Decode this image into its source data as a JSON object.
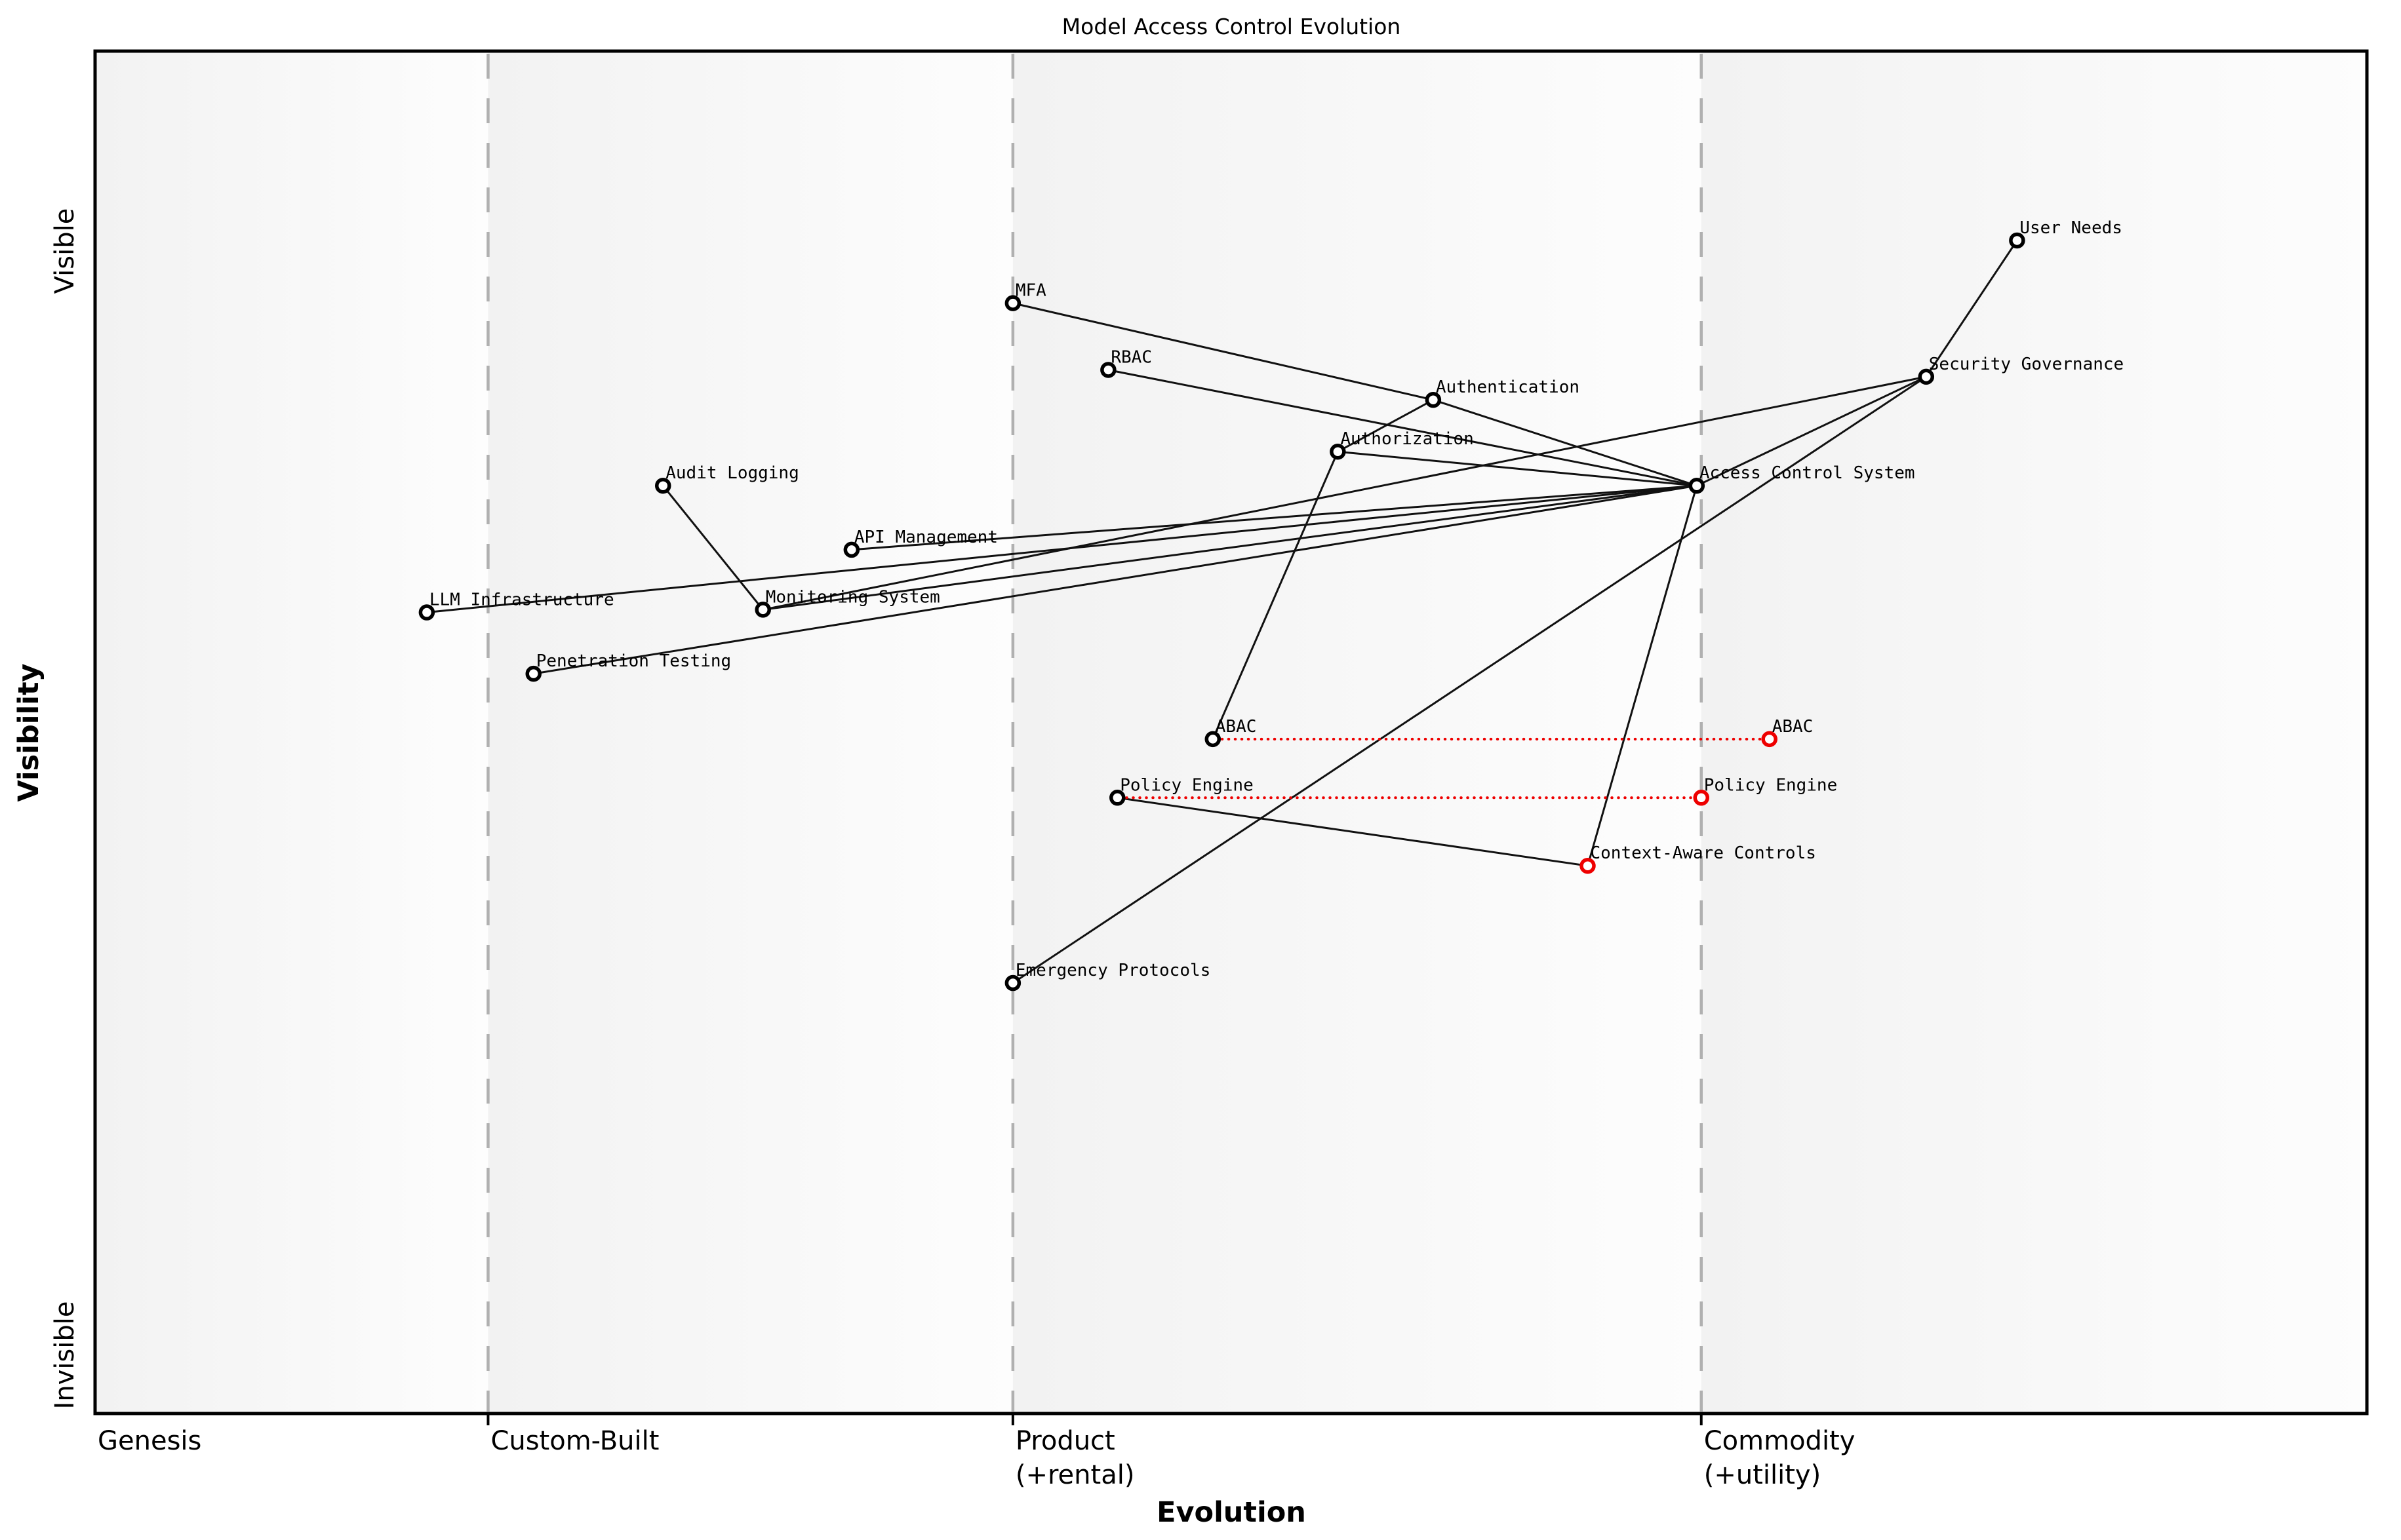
{
  "title": "Model Access Control Evolution",
  "axes": {
    "x": {
      "label": "Evolution",
      "stages": [
        {
          "name": "Genesis",
          "sub": "",
          "boundary": 0.0
        },
        {
          "name": "Custom-Built",
          "sub": "",
          "boundary": 0.173
        },
        {
          "name": "Product",
          "sub": "(+rental)",
          "boundary": 0.404
        },
        {
          "name": "Commodity",
          "sub": "(+utility)",
          "boundary": 0.707
        }
      ]
    },
    "y": {
      "label": "Visibility",
      "top_label": "Visible",
      "bottom_label": "Invisible"
    }
  },
  "colors": {
    "node_default": "#000000",
    "node_future": "#ee0000",
    "evolution_link": "#ee0000",
    "edge": "#111111",
    "gridline": "#b0b0b0",
    "frame": "#000000",
    "zone_left": "#f2f2f2",
    "zone_right": "#fdfdfd"
  },
  "chart_data": {
    "type": "scatter",
    "subtype": "wardley-map",
    "title": "Model Access Control Evolution",
    "xlabel": "Evolution",
    "ylabel": "Visibility",
    "xlim": [
      0,
      1
    ],
    "ylim": [
      0,
      1
    ],
    "grid": "dashed-stage-boundaries",
    "stage_boundaries": [
      0.173,
      0.404,
      0.707
    ],
    "nodes": [
      {
        "id": "user_needs",
        "label": "User Needs",
        "evolution": 0.846,
        "visibility": 0.861,
        "type": "default"
      },
      {
        "id": "security_governance",
        "label": "Security Governance",
        "evolution": 0.806,
        "visibility": 0.761,
        "type": "default"
      },
      {
        "id": "mfa",
        "label": "MFA",
        "evolution": 0.404,
        "visibility": 0.815,
        "type": "default"
      },
      {
        "id": "rbac",
        "label": "RBAC",
        "evolution": 0.446,
        "visibility": 0.766,
        "type": "default"
      },
      {
        "id": "authentication",
        "label": "Authentication",
        "evolution": 0.589,
        "visibility": 0.744,
        "type": "default"
      },
      {
        "id": "authorization",
        "label": "Authorization",
        "evolution": 0.547,
        "visibility": 0.706,
        "type": "default"
      },
      {
        "id": "access_control_system",
        "label": "Access Control System",
        "evolution": 0.705,
        "visibility": 0.681,
        "type": "default"
      },
      {
        "id": "audit_logging",
        "label": "Audit Logging",
        "evolution": 0.25,
        "visibility": 0.681,
        "type": "default"
      },
      {
        "id": "api_management",
        "label": "API Management",
        "evolution": 0.333,
        "visibility": 0.634,
        "type": "default"
      },
      {
        "id": "monitoring_system",
        "label": "Monitoring System",
        "evolution": 0.294,
        "visibility": 0.59,
        "type": "default"
      },
      {
        "id": "llm_infrastructure",
        "label": "LLM Infrastructure",
        "evolution": 0.146,
        "visibility": 0.588,
        "type": "default"
      },
      {
        "id": "penetration_testing",
        "label": "Penetration Testing",
        "evolution": 0.193,
        "visibility": 0.543,
        "type": "default"
      },
      {
        "id": "abac",
        "label": "ABAC",
        "evolution": 0.492,
        "visibility": 0.495,
        "type": "default"
      },
      {
        "id": "abac_future",
        "label": "ABAC",
        "evolution": 0.737,
        "visibility": 0.495,
        "type": "future"
      },
      {
        "id": "policy_engine",
        "label": "Policy Engine",
        "evolution": 0.45,
        "visibility": 0.452,
        "type": "default"
      },
      {
        "id": "policy_engine_future",
        "label": "Policy Engine",
        "evolution": 0.707,
        "visibility": 0.452,
        "type": "future"
      },
      {
        "id": "context_aware_controls",
        "label": "Context-Aware Controls",
        "evolution": 0.657,
        "visibility": 0.402,
        "type": "future"
      },
      {
        "id": "emergency_protocols",
        "label": "Emergency Protocols",
        "evolution": 0.404,
        "visibility": 0.316,
        "type": "default"
      }
    ],
    "edges": [
      {
        "from": "user_needs",
        "to": "security_governance"
      },
      {
        "from": "security_governance",
        "to": "access_control_system"
      },
      {
        "from": "security_governance",
        "to": "emergency_protocols"
      },
      {
        "from": "security_governance",
        "to": "monitoring_system"
      },
      {
        "from": "mfa",
        "to": "authentication"
      },
      {
        "from": "authentication",
        "to": "authorization"
      },
      {
        "from": "authentication",
        "to": "access_control_system"
      },
      {
        "from": "authorization",
        "to": "access_control_system"
      },
      {
        "from": "authorization",
        "to": "abac"
      },
      {
        "from": "rbac",
        "to": "access_control_system"
      },
      {
        "from": "audit_logging",
        "to": "monitoring_system"
      },
      {
        "from": "api_management",
        "to": "access_control_system"
      },
      {
        "from": "monitoring_system",
        "to": "access_control_system"
      },
      {
        "from": "llm_infrastructure",
        "to": "access_control_system"
      },
      {
        "from": "penetration_testing",
        "to": "access_control_system"
      },
      {
        "from": "access_control_system",
        "to": "context_aware_controls"
      },
      {
        "from": "policy_engine",
        "to": "context_aware_controls"
      }
    ],
    "evolution_links": [
      {
        "from": "abac",
        "to": "abac_future"
      },
      {
        "from": "policy_engine",
        "to": "policy_engine_future"
      }
    ]
  }
}
